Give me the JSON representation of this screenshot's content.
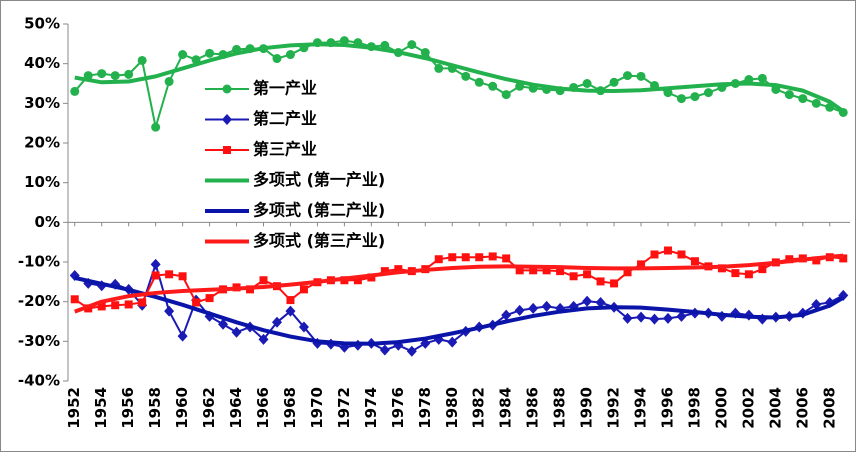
{
  "chart_data": {
    "type": "line",
    "x": [
      1952,
      1953,
      1954,
      1955,
      1956,
      1957,
      1958,
      1959,
      1960,
      1961,
      1962,
      1963,
      1964,
      1965,
      1966,
      1967,
      1968,
      1969,
      1970,
      1971,
      1972,
      1973,
      1974,
      1975,
      1976,
      1977,
      1978,
      1979,
      1980,
      1981,
      1982,
      1983,
      1984,
      1985,
      1986,
      1987,
      1988,
      1989,
      1990,
      1991,
      1992,
      1993,
      1994,
      1995,
      1996,
      1997,
      1998,
      1999,
      2000,
      2001,
      2002,
      2003,
      2004,
      2005,
      2006,
      2007,
      2008,
      2009
    ],
    "xlim": [
      1951.5,
      2009.5
    ],
    "xticks": [
      1952,
      1954,
      1956,
      1958,
      1960,
      1962,
      1964,
      1966,
      1968,
      1970,
      1972,
      1974,
      1976,
      1978,
      1980,
      1982,
      1984,
      1986,
      1988,
      1990,
      1992,
      1994,
      1996,
      1998,
      2000,
      2002,
      2004,
      2006,
      2008
    ],
    "ylim": [
      -40,
      50
    ],
    "yticks": [
      {
        "value": -40,
        "label": "-40%"
      },
      {
        "value": -30,
        "label": "-30%"
      },
      {
        "value": -20,
        "label": "-20%"
      },
      {
        "value": -10,
        "label": "-10%"
      },
      {
        "value": 0,
        "label": "0%"
      },
      {
        "value": 10,
        "label": "10%"
      },
      {
        "value": 20,
        "label": "20%"
      },
      {
        "value": 30,
        "label": "30%"
      },
      {
        "value": 40,
        "label": "40%"
      },
      {
        "value": 50,
        "label": "50%"
      }
    ],
    "grid": false,
    "legend": "center",
    "series": [
      {
        "name": "第一产业",
        "color": "#22b14c",
        "marker": "circle",
        "values": [
          33,
          37,
          37.5,
          37,
          37.3,
          40.8,
          24,
          35.5,
          42.3,
          41,
          42.6,
          42.3,
          43.6,
          43.8,
          43.8,
          41.3,
          42.3,
          44,
          45.3,
          45.3,
          45.8,
          45.3,
          44.3,
          44.6,
          42.8,
          44.8,
          42.8,
          38.8,
          38.8,
          36.8,
          35.3,
          34.3,
          32.2,
          34.3,
          33.8,
          33.5,
          33.2,
          34,
          35,
          33.2,
          35.3,
          37,
          36.8,
          34.5,
          32.7,
          31.2,
          31.7,
          32.7,
          34,
          35,
          36,
          36.3,
          33.5,
          32.2,
          31.2,
          30,
          29,
          27.7
        ]
      },
      {
        "name": "第二产业",
        "color": "#1a1ab4",
        "marker": "diamond",
        "values": [
          -13.4,
          -15.4,
          -16,
          -15.6,
          -16.9,
          -20.9,
          -10.6,
          -22.4,
          -28.7,
          -19.6,
          -23.7,
          -25.7,
          -27.7,
          -26.4,
          -29.5,
          -25.2,
          -22.4,
          -26.4,
          -30.5,
          -30.7,
          -31.5,
          -31,
          -30.5,
          -32.2,
          -31,
          -32.5,
          -30.5,
          -29.5,
          -30.2,
          -27.5,
          -26.4,
          -25.9,
          -23.4,
          -22.2,
          -21.7,
          -21.2,
          -21.7,
          -21.2,
          -19.9,
          -20.2,
          -21.4,
          -24.2,
          -23.9,
          -24.4,
          -24.2,
          -23.7,
          -22.9,
          -22.9,
          -23.7,
          -22.9,
          -23.4,
          -24.4,
          -23.9,
          -23.7,
          -22.9,
          -20.7,
          -20.2,
          -18.4
        ]
      },
      {
        "name": "第三产业",
        "color": "#ff1010",
        "marker": "square",
        "values": [
          -19.4,
          -21.7,
          -21.2,
          -20.9,
          -20.7,
          -20.2,
          -13.4,
          -13.1,
          -13.6,
          -20.2,
          -19.1,
          -16.9,
          -16.4,
          -16.9,
          -14.6,
          -16.1,
          -19.6,
          -16.9,
          -15.1,
          -14.6,
          -14.6,
          -14.6,
          -13.9,
          -12.3,
          -11.8,
          -12.3,
          -11.8,
          -9.3,
          -8.8,
          -8.8,
          -8.8,
          -8.6,
          -9.1,
          -12.1,
          -12.1,
          -12.1,
          -12.3,
          -13.6,
          -13.1,
          -14.9,
          -15.4,
          -12.6,
          -10.6,
          -8.1,
          -7.1,
          -8.1,
          -9.8,
          -11.1,
          -11.6,
          -12.8,
          -13.1,
          -11.8,
          -10.1,
          -9.3,
          -9.1,
          -9.6,
          -8.8,
          -9.1
        ]
      },
      {
        "name": "多项式 (第一产业)",
        "color": "#22b14c",
        "marker": "none",
        "x": [
          1952,
          1954,
          1956,
          1958,
          1960,
          1962,
          1964,
          1966,
          1968,
          1970,
          1972,
          1974,
          1976,
          1978,
          1980,
          1982,
          1984,
          1986,
          1988,
          1990,
          1992,
          1994,
          1996,
          1998,
          2000,
          2002,
          2004,
          2006,
          2008,
          2009
        ],
        "values": [
          36.5,
          35.3,
          35.5,
          36.8,
          38.8,
          40.8,
          42.6,
          43.9,
          44.6,
          44.9,
          44.7,
          44,
          42.9,
          41.4,
          39.6,
          37.8,
          36.1,
          34.7,
          33.7,
          33.2,
          33.1,
          33.3,
          33.8,
          34.3,
          34.8,
          35,
          34.6,
          33.2,
          30.4,
          28
        ]
      },
      {
        "name": "多项式 (第二产业)",
        "color": "#0a14a8",
        "marker": "none",
        "x": [
          1952,
          1954,
          1956,
          1958,
          1960,
          1962,
          1964,
          1966,
          1968,
          1970,
          1972,
          1974,
          1976,
          1978,
          1980,
          1982,
          1984,
          1986,
          1988,
          1990,
          1992,
          1994,
          1996,
          1998,
          2000,
          2002,
          2004,
          2006,
          2008,
          2009
        ],
        "values": [
          -14,
          -15.5,
          -17,
          -18.8,
          -20.8,
          -23,
          -25.2,
          -27.2,
          -28.8,
          -30,
          -30.5,
          -30.6,
          -30.2,
          -29.3,
          -28,
          -26.6,
          -25,
          -23.6,
          -22.5,
          -21.7,
          -21.4,
          -21.5,
          -22,
          -22.6,
          -23.3,
          -23.8,
          -24,
          -23.3,
          -21,
          -19
        ]
      },
      {
        "name": "多项式 (第三产业)",
        "color": "#ff1a1a",
        "marker": "none",
        "x": [
          1952,
          1954,
          1956,
          1958,
          1960,
          1962,
          1964,
          1966,
          1968,
          1970,
          1972,
          1974,
          1976,
          1978,
          1980,
          1982,
          1984,
          1986,
          1988,
          1990,
          1992,
          1994,
          1996,
          1998,
          2000,
          2002,
          2004,
          2006,
          2008,
          2009
        ],
        "values": [
          -22.5,
          -20,
          -18.6,
          -17.8,
          -17.3,
          -17,
          -16.7,
          -16.3,
          -15.7,
          -15,
          -14.2,
          -13.4,
          -12.6,
          -12,
          -11.5,
          -11.2,
          -11.1,
          -11.2,
          -11.3,
          -11.5,
          -11.6,
          -11.6,
          -11.5,
          -11.4,
          -11.2,
          -10.8,
          -10.2,
          -9.4,
          -8.7,
          -8.4
        ]
      }
    ]
  }
}
